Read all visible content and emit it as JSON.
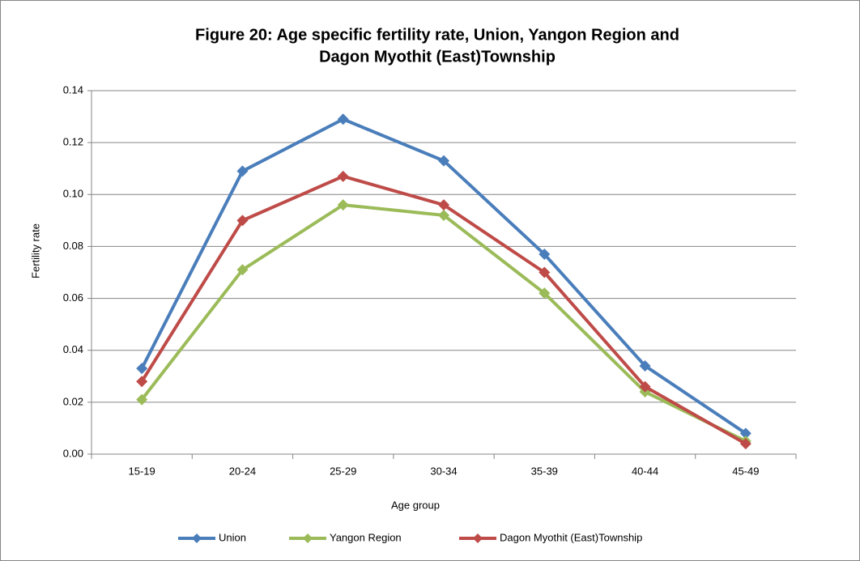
{
  "chart_data": {
    "type": "line",
    "title": [
      "Figure 20: Age specific fertility rate, Union, Yangon Region and",
      "Dagon Myothit (East)Township"
    ],
    "x_label": "Age group",
    "y_label": "Fertility rate",
    "categories": [
      "15-19",
      "20-24",
      "25-29",
      "30-34",
      "35-39",
      "40-44",
      "45-49"
    ],
    "series": [
      {
        "name": "Union",
        "color": "#4a7ebb",
        "values": [
          0.033,
          0.109,
          0.129,
          0.113,
          0.077,
          0.034,
          0.008
        ]
      },
      {
        "name": "Yangon Region",
        "color": "#9bbb59",
        "values": [
          0.021,
          0.071,
          0.096,
          0.092,
          0.062,
          0.024,
          0.005
        ]
      },
      {
        "name": "Dagon Myothit (East)Township",
        "color": "#be4b48",
        "values": [
          0.028,
          0.09,
          0.107,
          0.096,
          0.07,
          0.026,
          0.004
        ]
      }
    ],
    "ylim": [
      0,
      0.14
    ],
    "yticks": [
      {
        "value": 0,
        "label": "0.00"
      },
      0.02,
      0.04,
      0.06,
      0.08,
      {
        "value": 0.1,
        "label": "0.10"
      },
      0.12,
      0.14
    ],
    "grid": true,
    "legend": "bottom"
  }
}
